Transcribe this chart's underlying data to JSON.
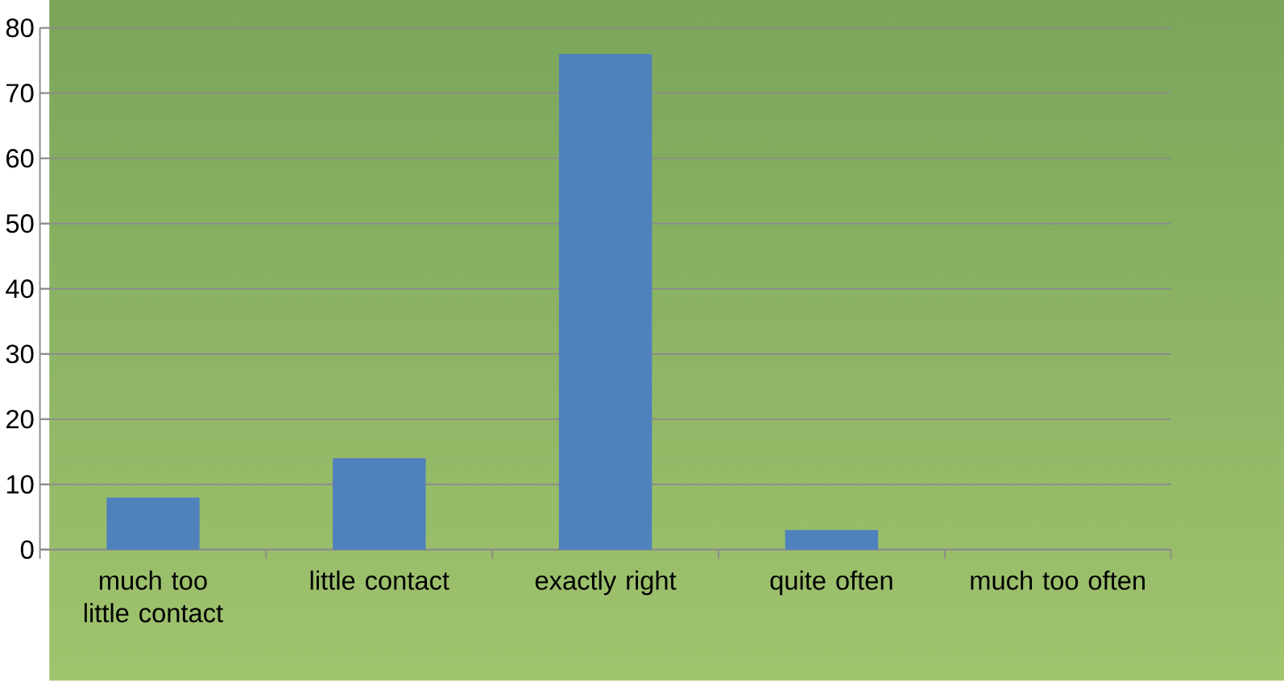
{
  "chart_data": {
    "type": "bar",
    "categories": [
      "much too little contact",
      "little contact",
      "exactly right",
      "quite often",
      "much too often"
    ],
    "values": [
      8,
      14,
      76,
      3,
      0
    ],
    "color": "#4f81bd",
    "ylim": [
      0,
      80
    ],
    "yticks": [
      0,
      10,
      20,
      30,
      40,
      50,
      60,
      70,
      80
    ],
    "grid": "y"
  }
}
